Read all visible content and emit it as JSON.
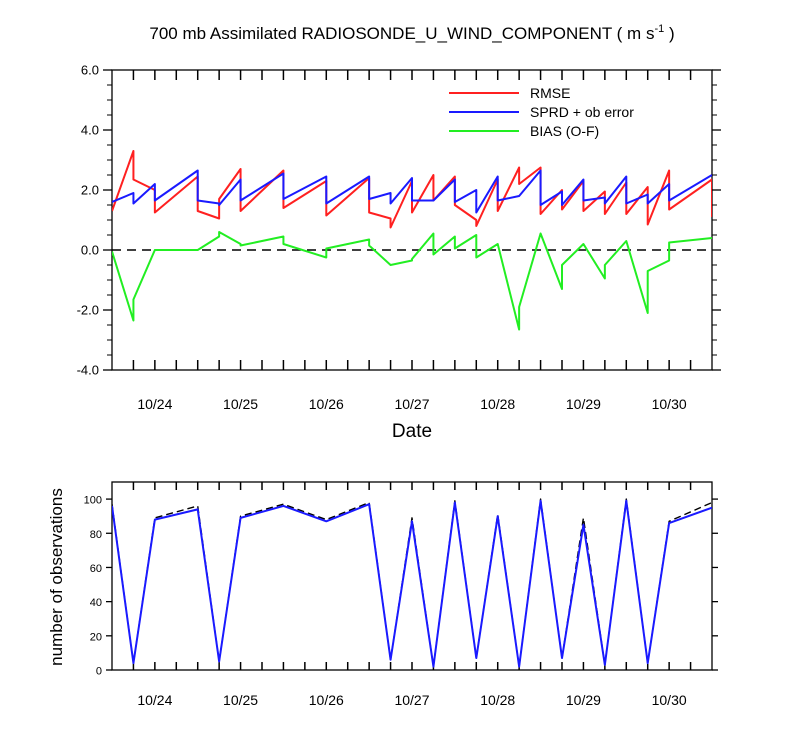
{
  "title_main": "700 mb Assimilated RADIOSONDE_U_WIND_COMPONENT ( m s",
  "title_sup": "-1",
  "title_end": " )",
  "colors": {
    "rmse": "#ff2020",
    "sprd": "#1a1aff",
    "bias": "#22ee22",
    "obs_possible": "#000000",
    "obs_used": "#1a1aff",
    "zero_line": "#000000"
  },
  "chart_data": [
    {
      "type": "line",
      "xlabel": "Date",
      "ylabel": "",
      "xlim": [
        23.5,
        30.5
      ],
      "ylim": [
        -4,
        6
      ],
      "x_ticks": [
        24,
        25,
        26,
        27,
        28,
        29,
        30
      ],
      "x_tick_labels": [
        "10/24",
        "10/25",
        "10/26",
        "10/27",
        "10/28",
        "10/29",
        "10/30"
      ],
      "y_ticks": [
        -4,
        -2,
        0,
        2,
        4,
        6
      ],
      "y_tick_labels": [
        "-4.0",
        "-2.0",
        "0.0",
        "2.0",
        "4.0",
        "6.0"
      ],
      "reference_line": 0,
      "legend_position": "top-right",
      "series": [
        {
          "name": "RMSE",
          "points": [
            [
              23.5,
              1.3
            ],
            [
              23.75,
              3.3
            ],
            [
              23.75,
              2.35
            ],
            [
              24.0,
              2.0
            ],
            [
              24.0,
              1.25
            ],
            [
              24.5,
              2.45
            ],
            [
              24.5,
              1.3
            ],
            [
              24.75,
              1.05
            ],
            [
              24.75,
              1.7
            ],
            [
              25.0,
              2.7
            ],
            [
              25.0,
              1.3
            ],
            [
              25.5,
              2.65
            ],
            [
              25.5,
              1.4
            ],
            [
              26.0,
              2.3
            ],
            [
              26.0,
              1.15
            ],
            [
              26.5,
              2.4
            ],
            [
              26.5,
              1.25
            ],
            [
              26.75,
              1.05
            ],
            [
              26.75,
              0.75
            ],
            [
              27.0,
              2.3
            ],
            [
              27.0,
              1.25
            ],
            [
              27.25,
              2.5
            ],
            [
              27.25,
              1.65
            ],
            [
              27.5,
              2.45
            ],
            [
              27.5,
              1.5
            ],
            [
              27.75,
              1.0
            ],
            [
              27.75,
              0.8
            ],
            [
              28.0,
              2.35
            ],
            [
              28.0,
              1.3
            ],
            [
              28.25,
              2.75
            ],
            [
              28.25,
              2.2
            ],
            [
              28.5,
              2.75
            ],
            [
              28.5,
              1.2
            ],
            [
              28.75,
              2.0
            ],
            [
              28.75,
              1.35
            ],
            [
              29.0,
              2.3
            ],
            [
              29.0,
              1.3
            ],
            [
              29.25,
              1.95
            ],
            [
              29.25,
              1.2
            ],
            [
              29.5,
              2.25
            ],
            [
              29.5,
              1.2
            ],
            [
              29.75,
              2.1
            ],
            [
              29.75,
              0.85
            ],
            [
              30.0,
              2.65
            ],
            [
              30.0,
              1.35
            ],
            [
              30.5,
              2.35
            ],
            [
              30.5,
              1.1
            ]
          ]
        },
        {
          "name": "SPRD + ob error",
          "points": [
            [
              23.5,
              1.6
            ],
            [
              23.75,
              1.9
            ],
            [
              23.75,
              1.55
            ],
            [
              24.0,
              2.2
            ],
            [
              24.0,
              1.65
            ],
            [
              24.5,
              2.65
            ],
            [
              24.5,
              1.65
            ],
            [
              24.75,
              1.55
            ],
            [
              24.75,
              1.5
            ],
            [
              25.0,
              2.35
            ],
            [
              25.0,
              1.65
            ],
            [
              25.5,
              2.55
            ],
            [
              25.5,
              1.7
            ],
            [
              26.0,
              2.45
            ],
            [
              26.0,
              1.55
            ],
            [
              26.5,
              2.45
            ],
            [
              26.5,
              1.7
            ],
            [
              26.75,
              1.9
            ],
            [
              26.75,
              1.55
            ],
            [
              27.0,
              2.4
            ],
            [
              27.0,
              1.65
            ],
            [
              27.25,
              1.65
            ],
            [
              27.5,
              2.35
            ],
            [
              27.5,
              1.6
            ],
            [
              27.75,
              2.0
            ],
            [
              27.75,
              1.25
            ],
            [
              28.0,
              2.45
            ],
            [
              28.0,
              1.65
            ],
            [
              28.25,
              1.8
            ],
            [
              28.5,
              2.65
            ],
            [
              28.5,
              1.5
            ],
            [
              28.75,
              1.95
            ],
            [
              28.75,
              1.5
            ],
            [
              29.0,
              2.35
            ],
            [
              29.0,
              1.65
            ],
            [
              29.25,
              1.75
            ],
            [
              29.25,
              1.55
            ],
            [
              29.5,
              2.45
            ],
            [
              29.5,
              1.55
            ],
            [
              29.75,
              1.85
            ],
            [
              29.75,
              1.55
            ],
            [
              30.0,
              2.2
            ],
            [
              30.0,
              1.65
            ],
            [
              30.5,
              2.5
            ]
          ]
        },
        {
          "name": "BIAS (O-F)",
          "points": [
            [
              23.5,
              -0.05
            ],
            [
              23.75,
              -2.35
            ],
            [
              23.75,
              -1.65
            ],
            [
              24.0,
              0.0
            ],
            [
              24.5,
              0.0
            ],
            [
              24.75,
              0.45
            ],
            [
              24.75,
              0.6
            ],
            [
              25.0,
              0.2
            ],
            [
              25.0,
              0.15
            ],
            [
              25.5,
              0.45
            ],
            [
              25.5,
              0.2
            ],
            [
              26.0,
              -0.25
            ],
            [
              26.0,
              0.05
            ],
            [
              26.5,
              0.35
            ],
            [
              26.5,
              0.15
            ],
            [
              26.75,
              -0.5
            ],
            [
              27.0,
              -0.35
            ],
            [
              27.0,
              -0.3
            ],
            [
              27.25,
              0.55
            ],
            [
              27.25,
              -0.15
            ],
            [
              27.5,
              0.45
            ],
            [
              27.5,
              0.05
            ],
            [
              27.75,
              0.5
            ],
            [
              27.75,
              -0.25
            ],
            [
              28.0,
              0.2
            ],
            [
              28.25,
              -2.65
            ],
            [
              28.25,
              -1.9
            ],
            [
              28.5,
              0.55
            ],
            [
              28.75,
              -1.3
            ],
            [
              28.75,
              -0.5
            ],
            [
              29.0,
              0.2
            ],
            [
              29.25,
              -0.95
            ],
            [
              29.25,
              -0.5
            ],
            [
              29.5,
              0.3
            ],
            [
              29.75,
              -2.1
            ],
            [
              29.75,
              -0.7
            ],
            [
              30.0,
              -0.35
            ],
            [
              30.0,
              0.25
            ],
            [
              30.5,
              0.4
            ]
          ]
        }
      ]
    },
    {
      "type": "line",
      "xlabel": "",
      "ylabel": "number of observations",
      "xlim": [
        23.5,
        30.5
      ],
      "ylim": [
        0,
        110
      ],
      "x_ticks": [
        24,
        25,
        26,
        27,
        28,
        29,
        30
      ],
      "x_tick_labels": [
        "10/24",
        "10/25",
        "10/26",
        "10/27",
        "10/28",
        "10/29",
        "10/30"
      ],
      "y_ticks": [
        0,
        20,
        40,
        60,
        80,
        100
      ],
      "y_tick_labels": [
        "0",
        "20",
        "40",
        "60",
        "80",
        "100"
      ],
      "series": [
        {
          "style": "dashed",
          "points": [
            [
              23.5,
              97
            ],
            [
              23.75,
              4
            ],
            [
              24.0,
              89
            ],
            [
              24.5,
              96
            ],
            [
              24.75,
              5
            ],
            [
              25.0,
              90
            ],
            [
              25.5,
              97
            ],
            [
              26.0,
              88
            ],
            [
              26.5,
              98
            ],
            [
              26.75,
              6
            ],
            [
              27.0,
              89
            ],
            [
              27.25,
              2
            ],
            [
              27.5,
              99
            ],
            [
              27.75,
              7
            ],
            [
              28.0,
              91
            ],
            [
              28.25,
              2
            ],
            [
              28.5,
              100
            ],
            [
              28.75,
              7
            ],
            [
              29.0,
              89
            ],
            [
              29.25,
              3
            ],
            [
              29.5,
              100
            ],
            [
              29.75,
              4
            ],
            [
              30.0,
              87
            ],
            [
              30.5,
              98
            ]
          ]
        },
        {
          "style": "solid",
          "points": [
            [
              23.5,
              96
            ],
            [
              23.75,
              4
            ],
            [
              24.0,
              88
            ],
            [
              24.5,
              94
            ],
            [
              24.75,
              5
            ],
            [
              25.0,
              89
            ],
            [
              25.5,
              96
            ],
            [
              26.0,
              87
            ],
            [
              26.5,
              97
            ],
            [
              26.75,
              6
            ],
            [
              27.0,
              87
            ],
            [
              27.25,
              2
            ],
            [
              27.5,
              98
            ],
            [
              27.75,
              7
            ],
            [
              28.0,
              90
            ],
            [
              28.25,
              2
            ],
            [
              28.5,
              99
            ],
            [
              28.75,
              7
            ],
            [
              29.0,
              85
            ],
            [
              29.25,
              3
            ],
            [
              29.5,
              99
            ],
            [
              29.75,
              4
            ],
            [
              30.0,
              86
            ],
            [
              30.5,
              95
            ]
          ]
        }
      ]
    }
  ]
}
